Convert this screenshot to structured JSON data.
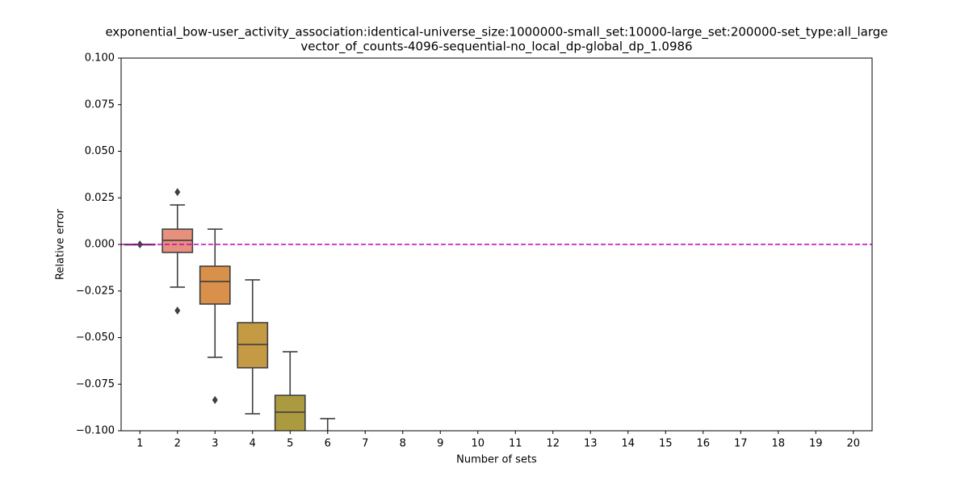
{
  "chart_data": {
    "type": "box",
    "title_lines": [
      "exponential_bow-user_activity_association:identical-universe_size:1000000-small_set:10000-large_set:200000-set_type:all_large",
      "vector_of_counts-4096-sequential-no_local_dp-global_dp_1.0986"
    ],
    "xlabel": "Number of sets",
    "ylabel": "Relative error",
    "categories": [
      "1",
      "2",
      "3",
      "4",
      "5",
      "6",
      "7",
      "8",
      "9",
      "10",
      "11",
      "12",
      "13",
      "14",
      "15",
      "16",
      "17",
      "18",
      "19",
      "20"
    ],
    "colors": [
      "#e88f7f",
      "#e8907e",
      "#d8904a",
      "#c49a45",
      "#ab9a40",
      "#9aa03e",
      "#89a33e",
      "#6ea83e",
      "#4eac62",
      "#4aab82",
      "#48aa98",
      "#48a9a8",
      "#4aa7b8",
      "#4fa5c8",
      "#5c9fd6",
      "#7a98e0",
      "#9a8fe0",
      "#b886dc",
      "#cf7fd0",
      "#e07fb7"
    ],
    "boxes": [
      {
        "whislo": 0,
        "q1": 0,
        "med": 0,
        "q3": 0,
        "whishi": 0,
        "fliers": [
          0
        ]
      },
      {
        "whislo": -0.0229,
        "q1": -0.0043,
        "med": 0.0022,
        "q3": 0.0082,
        "whishi": 0.0212,
        "fliers": [
          0.0281,
          -0.0355
        ]
      },
      {
        "whislo": -0.0606,
        "q1": -0.032,
        "med": -0.0199,
        "q3": -0.0117,
        "whishi": 0.0082,
        "fliers": [
          -0.0835
        ]
      },
      {
        "whislo": -0.0909,
        "q1": -0.0662,
        "med": -0.0537,
        "q3": -0.042,
        "whishi": -0.019,
        "fliers": []
      },
      {
        "whislo": null,
        "q1": null,
        "med": -0.09,
        "q3": -0.081,
        "whishi": -0.0576,
        "fliers": []
      },
      {
        "whislo": null,
        "q1": null,
        "med": null,
        "q3": null,
        "whishi": -0.0935,
        "fliers": []
      },
      null,
      null,
      null,
      null,
      null,
      null,
      null,
      null,
      null,
      null,
      null,
      null,
      null,
      null
    ],
    "hline": {
      "value": 0,
      "color": "#bf00bf"
    },
    "ylim": [
      -0.1,
      0.1
    ],
    "yticks": [
      {
        "value": -0.1,
        "label": "−0.100"
      },
      {
        "value": -0.075,
        "label": "−0.075"
      },
      {
        "value": -0.05,
        "label": "−0.050"
      },
      {
        "value": -0.025,
        "label": "−0.025"
      },
      {
        "value": 0,
        "label": "0.000"
      },
      {
        "value": 0.025,
        "label": "0.025"
      },
      {
        "value": 0.05,
        "label": "0.050"
      },
      {
        "value": 0.075,
        "label": "0.075"
      },
      {
        "value": 0.1,
        "label": "0.100"
      }
    ]
  }
}
